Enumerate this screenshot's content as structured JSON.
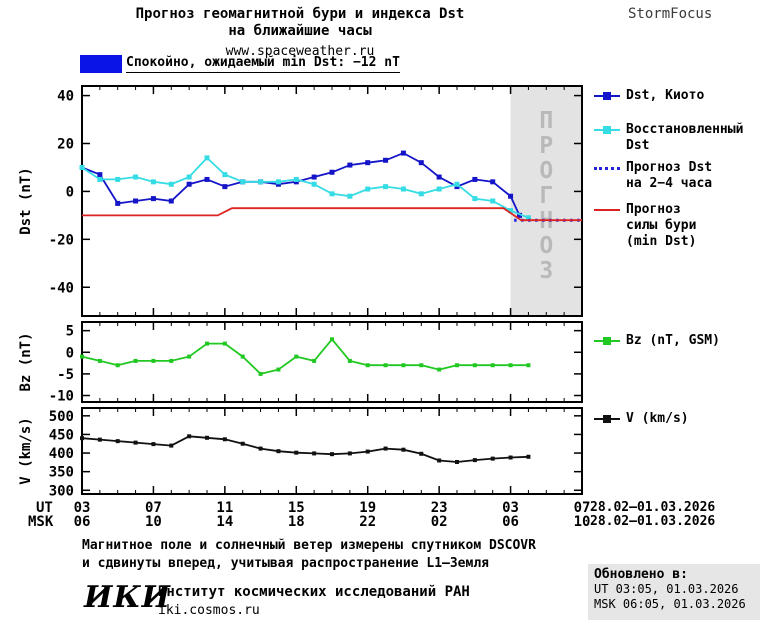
{
  "header": {
    "title_line1": "Прогноз геомагнитной бури и индекса Dst",
    "title_line2": "на ближайшие часы",
    "website": "www.spaceweather.ru",
    "brand": "StormFocus"
  },
  "status_banner": {
    "label": "Спокойно, ожидаемый min Dst: −12 nT",
    "swatch_color": "#0a14e6"
  },
  "chart_data": [
    {
      "type": "line",
      "key": "dst",
      "ylabel": "Dst (nT)",
      "ylim": [
        -52,
        44
      ],
      "yticks": [
        40,
        20,
        0,
        -20,
        -40
      ],
      "xlim": [
        0,
        28
      ],
      "xticks": [
        0,
        4,
        8,
        12,
        16,
        20,
        24,
        28
      ],
      "x_unit": "hours, UT from 03:00 28.02.2026",
      "forecast_band": {
        "from": 24,
        "to": 28,
        "label": "ПРОГНОЗ",
        "fill": "#e3e3e3"
      },
      "series": [
        {
          "name": "Dst, Киото",
          "color": "#1414c8",
          "marker": "square",
          "x": [
            0,
            1,
            2,
            3,
            4,
            5,
            6,
            7,
            8,
            9,
            10,
            11,
            12,
            13,
            14,
            15,
            16,
            17,
            18,
            19,
            20,
            21,
            22,
            23,
            24,
            24.5
          ],
          "y": [
            10,
            7,
            -5,
            -4,
            -3,
            -4,
            3,
            5,
            2,
            4,
            4,
            3,
            4,
            6,
            8,
            11,
            12,
            13,
            16,
            12,
            6,
            2,
            5,
            4,
            -2,
            -10
          ]
        },
        {
          "name": "Восстановленный Dst",
          "color": "#35dce4",
          "marker": "square",
          "x": [
            0,
            1,
            2,
            3,
            4,
            5,
            6,
            7,
            8,
            9,
            10,
            11,
            12,
            13,
            14,
            15,
            16,
            17,
            18,
            19,
            20,
            21,
            22,
            23,
            24,
            25
          ],
          "y": [
            10,
            5,
            5,
            6,
            4,
            3,
            6,
            14,
            7,
            4,
            4,
            4,
            5,
            3,
            -1,
            -2,
            1,
            2,
            1,
            -1,
            1,
            3,
            -3,
            -4,
            -8,
            -11
          ]
        },
        {
          "name": "Прогноз Dst на 2−4 часа",
          "color": "#2222dd",
          "style": "dotted",
          "x": [
            24.2,
            28
          ],
          "y": [
            -12,
            -12
          ]
        },
        {
          "name": "Прогноз силы бури (min Dst)",
          "color": "#dd2222",
          "x": [
            0,
            7.6,
            8.4,
            23.6,
            24.6,
            28
          ],
          "y": [
            -10,
            -10,
            -7,
            -7,
            -12,
            -12
          ]
        }
      ]
    },
    {
      "type": "line",
      "key": "bz",
      "ylabel": "Bz (nT)",
      "ylim": [
        -11.5,
        7
      ],
      "yticks": [
        5,
        0,
        -5,
        -10
      ],
      "xlim": [
        0,
        28
      ],
      "xticks": [
        0,
        4,
        8,
        12,
        16,
        20,
        24,
        28
      ],
      "series": [
        {
          "name": "Bz (nT, GSM)",
          "color": "#22c822",
          "marker": "square",
          "marker_size": 4,
          "x": [
            0,
            1,
            2,
            3,
            4,
            5,
            6,
            7,
            8,
            9,
            10,
            11,
            12,
            13,
            14,
            15,
            16,
            17,
            18,
            19,
            20,
            21,
            22,
            23,
            24,
            25
          ],
          "y": [
            -1,
            -2,
            -3,
            -2,
            -2,
            -2,
            -1,
            2,
            2,
            -1,
            -5,
            -4,
            -1,
            -2,
            3,
            -2,
            -3,
            -3,
            -3,
            -3,
            -4,
            -3,
            -3,
            -3,
            -3,
            -3
          ]
        }
      ]
    },
    {
      "type": "line",
      "key": "v",
      "ylabel": "V (km/s)",
      "ylim": [
        290,
        521
      ],
      "yticks": [
        500,
        450,
        400,
        350,
        300
      ],
      "xlim": [
        0,
        28
      ],
      "xticks": [
        0,
        4,
        8,
        12,
        16,
        20,
        24,
        28
      ],
      "series": [
        {
          "name": "V (km/s)",
          "color": "#111111",
          "marker": "square",
          "marker_size": 4,
          "x": [
            0,
            1,
            2,
            3,
            4,
            5,
            6,
            7,
            8,
            9,
            10,
            11,
            12,
            13,
            14,
            15,
            16,
            17,
            18,
            19,
            20,
            21,
            22,
            23,
            24,
            25
          ],
          "y": [
            440,
            436,
            432,
            428,
            424,
            420,
            445,
            441,
            437,
            425,
            412,
            405,
            401,
            399,
            397,
            399,
            404,
            412,
            409,
            398,
            380,
            376,
            381,
            385,
            388,
            390
          ]
        }
      ]
    }
  ],
  "xaxis": {
    "ut_label": "UT",
    "msk_label": "MSK",
    "ut_ticks": [
      "03",
      "07",
      "11",
      "15",
      "19",
      "23",
      "03",
      "07"
    ],
    "msk_ticks": [
      "06",
      "10",
      "14",
      "18",
      "22",
      "02",
      "06",
      "10"
    ],
    "ut_date": "28.02—01.03.2026",
    "msk_date": "28.02—01.03.2026"
  },
  "legends": {
    "dst_kyoto": "Dst, Киото",
    "restored": "Восстановленный\nDst",
    "forecast_dst": "Прогноз Dst\nна 2−4 часа",
    "forecast_storm": "Прогноз\nсилы бури\n(min Dst)",
    "bz": "Bz (nT, GSM)",
    "v": "V (km/s)"
  },
  "footer": {
    "note_line1": "Магнитное поле и солнечный ветер измерены спутником DSCOVR",
    "note_line2": "и сдвинуты вперед, учитывая распространение L1—Земля",
    "logo": "ИКИ",
    "institute": "Институт космических исследований РАН",
    "institute_url": "iki.cosmos.ru",
    "updated_title": "Обновлено в:",
    "updated_ut": "UT  03:05, 01.03.2026",
    "updated_msk": "MSK 06:05, 01.03.2026"
  }
}
